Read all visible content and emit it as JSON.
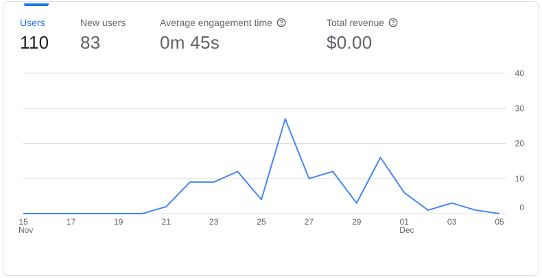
{
  "metrics": [
    {
      "label": "Users",
      "value": "110",
      "active": true,
      "help": false
    },
    {
      "label": "New users",
      "value": "83",
      "active": false,
      "help": false
    },
    {
      "label": "Average engagement time",
      "value": "0m 45s",
      "active": false,
      "help": true
    },
    {
      "label": "Total revenue",
      "value": "$0.00",
      "active": false,
      "help": true
    }
  ],
  "colors": {
    "accent": "#1a73e8",
    "line": "#4285f4",
    "grid": "#e0e0e0"
  },
  "chart_data": {
    "type": "line",
    "x_tick_labels": [
      "15",
      "17",
      "19",
      "21",
      "23",
      "25",
      "27",
      "29",
      "01",
      "03",
      "05"
    ],
    "x_month_labels": [
      {
        "label": "Nov",
        "tick_index": 0
      },
      {
        "label": "Dec",
        "tick_index": 8
      }
    ],
    "y_tick_labels": [
      "0",
      "10",
      "20",
      "30",
      "40"
    ],
    "ylim": [
      0,
      40
    ],
    "grid": true,
    "series": [
      {
        "x": [
          "Nov 15",
          "Nov 16",
          "Nov 17",
          "Nov 18",
          "Nov 19",
          "Nov 20",
          "Nov 21",
          "Nov 22",
          "Nov 23",
          "Nov 24",
          "Nov 25",
          "Nov 26",
          "Nov 27",
          "Nov 28",
          "Nov 29",
          "Nov 30",
          "Dec 01",
          "Dec 02",
          "Dec 03",
          "Dec 04",
          "Dec 05"
        ],
        "values": [
          0,
          0,
          0,
          0,
          0,
          0,
          2,
          9,
          9,
          12,
          4,
          27,
          10,
          12,
          3,
          16,
          6,
          1,
          3,
          1,
          0
        ]
      }
    ]
  }
}
